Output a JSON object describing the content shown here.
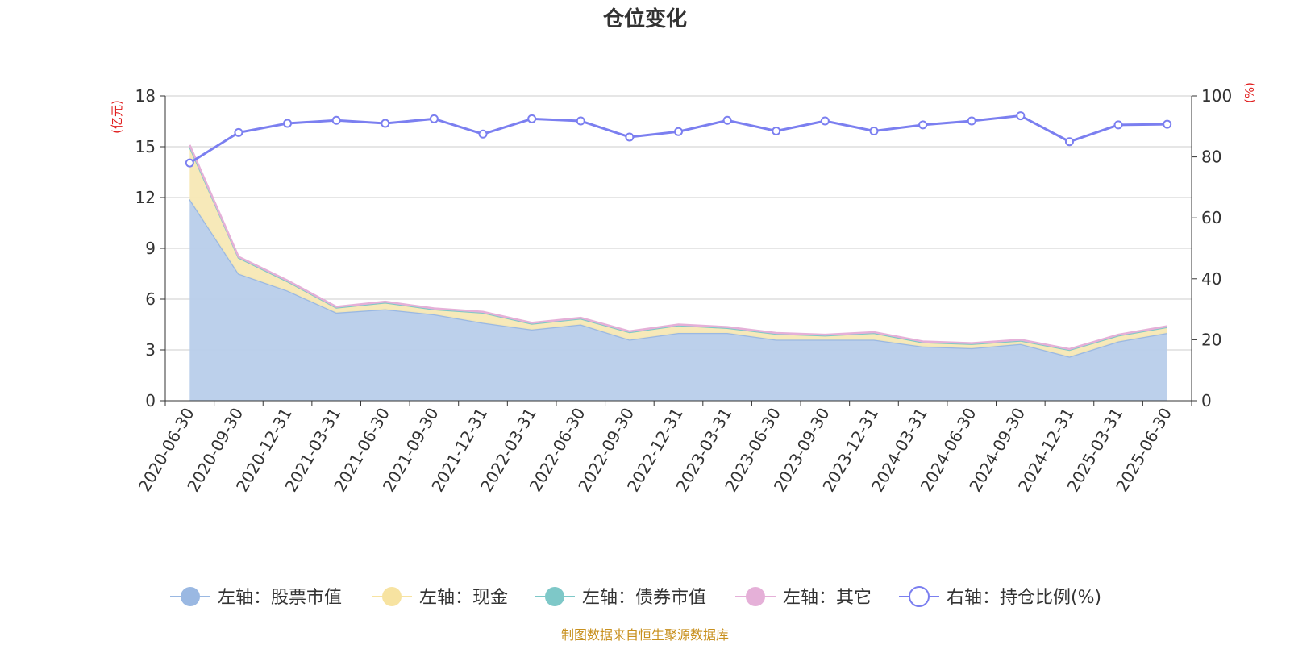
{
  "chart_data": {
    "type": "area",
    "title": "仓位变化",
    "source": "制图数据来自恒生聚源数据库",
    "left_axis": {
      "unit_label": "(亿元)",
      "ticks": [
        0,
        3,
        6,
        9,
        12,
        15,
        18
      ],
      "range": [
        0,
        18
      ]
    },
    "right_axis": {
      "unit_label": "(%)",
      "ticks": [
        0,
        20,
        40,
        60,
        80,
        100
      ],
      "range": [
        0,
        100
      ]
    },
    "grid": true,
    "legend_position": "bottom",
    "categories": [
      "2020-06-30",
      "2020-09-30",
      "2020-12-31",
      "2021-03-31",
      "2021-06-30",
      "2021-09-30",
      "2021-12-31",
      "2022-03-31",
      "2022-06-30",
      "2022-09-30",
      "2022-12-31",
      "2023-03-31",
      "2023-06-30",
      "2023-09-30",
      "2023-12-31",
      "2024-03-31",
      "2024-06-30",
      "2024-09-30",
      "2024-12-31",
      "2025-03-31",
      "2025-06-30"
    ],
    "series": [
      {
        "name": "左轴：股票市值",
        "axis": "left",
        "kind": "area",
        "color": "#9ab8e2",
        "fill": "#b8cdea",
        "values": [
          11.9,
          7.5,
          6.5,
          5.2,
          5.4,
          5.1,
          4.6,
          4.2,
          4.5,
          3.6,
          4.0,
          4.0,
          3.6,
          3.6,
          3.6,
          3.2,
          3.1,
          3.35,
          2.6,
          3.5,
          4.0
        ]
      },
      {
        "name": "左轴：现金",
        "axis": "left",
        "kind": "area",
        "color": "#f7e3a1",
        "fill": "#f7e8b5",
        "values": [
          3.1,
          0.95,
          0.55,
          0.3,
          0.4,
          0.3,
          0.6,
          0.35,
          0.35,
          0.45,
          0.45,
          0.3,
          0.35,
          0.25,
          0.4,
          0.25,
          0.25,
          0.2,
          0.4,
          0.35,
          0.35
        ]
      },
      {
        "name": "左轴：债券市值",
        "axis": "left",
        "kind": "area",
        "color": "#7ec8c8",
        "fill": "#a8dada",
        "values": [
          0,
          0,
          0,
          0,
          0,
          0,
          0,
          0,
          0,
          0,
          0,
          0,
          0,
          0,
          0,
          0,
          0,
          0,
          0,
          0,
          0
        ]
      },
      {
        "name": "左轴：其它",
        "axis": "left",
        "kind": "area",
        "color": "#e5b0d8",
        "fill": "#f0cce6",
        "values": [
          0.1,
          0.05,
          0.05,
          0.05,
          0.05,
          0.05,
          0.05,
          0.05,
          0.05,
          0.05,
          0.05,
          0.05,
          0.05,
          0.05,
          0.05,
          0.05,
          0.05,
          0.05,
          0.05,
          0.05,
          0.05
        ]
      },
      {
        "name": "右轴：持仓比例(%)",
        "axis": "right",
        "kind": "line",
        "color": "#7b7ff0",
        "values": [
          78,
          88,
          91,
          92,
          91,
          92.5,
          87.5,
          92.5,
          91.8,
          86.5,
          88.3,
          92,
          88.5,
          91.8,
          88.5,
          90.5,
          91.8,
          93.5,
          85,
          90.5,
          90.7
        ]
      }
    ]
  }
}
